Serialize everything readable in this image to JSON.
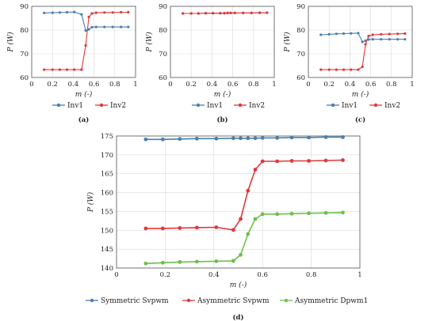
{
  "colors": {
    "blue": "#4a7fb0",
    "red": "#e0383b",
    "green": "#6cc14a",
    "grid": "#d9d9d9",
    "axis": "#555555"
  },
  "chart_data": [
    {
      "type": "line",
      "panel_label": "(a)",
      "xlabel": "m (-)",
      "ylabel": "P (W)",
      "xlim": [
        0,
        1
      ],
      "ylim": [
        60,
        90
      ],
      "xticks": [
        "0",
        "0.2",
        "0.4",
        "0.6",
        "0.8",
        "1"
      ],
      "yticks": [
        "60",
        "70",
        "80",
        "90"
      ],
      "grid": true,
      "legend_position": "bottom",
      "series": [
        {
          "name": "Inv1",
          "color": "blue",
          "x": [
            0.12,
            0.2,
            0.27,
            0.34,
            0.41,
            0.48,
            0.52,
            0.55,
            0.58,
            0.62,
            0.7,
            0.78,
            0.86,
            0.93
          ],
          "y": [
            87.2,
            87.3,
            87.4,
            87.5,
            87.6,
            86.6,
            79.8,
            80.3,
            81.2,
            81.3,
            81.3,
            81.3,
            81.3,
            81.3
          ]
        },
        {
          "name": "Inv2",
          "color": "red",
          "x": [
            0.12,
            0.2,
            0.27,
            0.34,
            0.41,
            0.48,
            0.52,
            0.55,
            0.58,
            0.62,
            0.7,
            0.78,
            0.86,
            0.93
          ],
          "y": [
            63.3,
            63.3,
            63.3,
            63.3,
            63.3,
            63.3,
            73.5,
            85.5,
            87.0,
            87.3,
            87.4,
            87.4,
            87.5,
            87.5
          ]
        }
      ]
    },
    {
      "type": "line",
      "panel_label": "(b)",
      "xlabel": "m (-)",
      "ylabel": "P (W)",
      "xlim": [
        0,
        1
      ],
      "ylim": [
        60,
        90
      ],
      "xticks": [
        "0",
        "0.2",
        "0.4",
        "0.6",
        "0.8",
        "1"
      ],
      "yticks": [
        "60",
        "70",
        "80",
        "90"
      ],
      "grid": true,
      "legend_position": "bottom",
      "series": [
        {
          "name": "Inv1",
          "color": "blue",
          "x": [
            0.12,
            0.2,
            0.27,
            0.34,
            0.41,
            0.48,
            0.52,
            0.55,
            0.58,
            0.62,
            0.7,
            0.78,
            0.86,
            0.93
          ],
          "y": [
            87.0,
            87.0,
            87.0,
            87.1,
            87.1,
            87.1,
            87.1,
            87.2,
            87.2,
            87.2,
            87.2,
            87.2,
            87.3,
            87.3
          ]
        },
        {
          "name": "Inv2",
          "color": "red",
          "x": [
            0.12,
            0.2,
            0.27,
            0.34,
            0.41,
            0.48,
            0.52,
            0.55,
            0.58,
            0.62,
            0.7,
            0.78,
            0.86,
            0.93
          ],
          "y": [
            87.0,
            87.0,
            87.0,
            87.1,
            87.1,
            87.1,
            87.1,
            87.2,
            87.2,
            87.2,
            87.2,
            87.2,
            87.3,
            87.3
          ]
        }
      ]
    },
    {
      "type": "line",
      "panel_label": "(c)",
      "xlabel": "m (-)",
      "ylabel": "P (W)",
      "xlim": [
        0,
        1
      ],
      "ylim": [
        60,
        90
      ],
      "xticks": [
        "0",
        "0.2",
        "0.4",
        "0.6",
        "0.8",
        "1"
      ],
      "yticks": [
        "60",
        "70",
        "80",
        "90"
      ],
      "grid": true,
      "legend_position": "bottom",
      "series": [
        {
          "name": "Inv1",
          "color": "blue",
          "x": [
            0.12,
            0.2,
            0.27,
            0.34,
            0.41,
            0.48,
            0.52,
            0.55,
            0.58,
            0.62,
            0.7,
            0.78,
            0.86,
            0.93
          ],
          "y": [
            78.0,
            78.2,
            78.4,
            78.5,
            78.6,
            78.7,
            75.0,
            75.5,
            76.0,
            76.1,
            76.1,
            76.1,
            76.1,
            76.1
          ]
        },
        {
          "name": "Inv2",
          "color": "red",
          "x": [
            0.12,
            0.2,
            0.27,
            0.34,
            0.41,
            0.48,
            0.52,
            0.55,
            0.58,
            0.62,
            0.7,
            0.78,
            0.86,
            0.93
          ],
          "y": [
            63.3,
            63.3,
            63.3,
            63.3,
            63.3,
            63.3,
            64.5,
            74.0,
            77.5,
            78.0,
            78.2,
            78.3,
            78.4,
            78.5
          ]
        }
      ]
    },
    {
      "type": "line",
      "panel_label": "(d)",
      "xlabel": "m (-)",
      "ylabel": "P (W)",
      "xlim": [
        0,
        1
      ],
      "ylim": [
        140,
        175
      ],
      "xticks": [
        "0",
        "0.2",
        "0.4",
        "0.6",
        "0.8",
        "1"
      ],
      "yticks": [
        "140",
        "145",
        "150",
        "155",
        "160",
        "165",
        "170",
        "175"
      ],
      "grid": true,
      "legend_position": "bottom",
      "series": [
        {
          "name": "Symmetric Svpwm",
          "color": "blue",
          "x": [
            0.12,
            0.19,
            0.26,
            0.33,
            0.41,
            0.48,
            0.51,
            0.54,
            0.57,
            0.6,
            0.66,
            0.72,
            0.79,
            0.86,
            0.93
          ],
          "y": [
            174.1,
            174.1,
            174.2,
            174.3,
            174.3,
            174.4,
            174.4,
            174.4,
            174.4,
            174.5,
            174.5,
            174.6,
            174.6,
            174.7,
            174.7
          ]
        },
        {
          "name": "Asymmetric Svpwm",
          "color": "red",
          "x": [
            0.12,
            0.19,
            0.26,
            0.33,
            0.41,
            0.48,
            0.51,
            0.54,
            0.57,
            0.6,
            0.66,
            0.72,
            0.79,
            0.86,
            0.93
          ],
          "y": [
            150.5,
            150.5,
            150.6,
            150.7,
            150.8,
            150.1,
            153.0,
            160.5,
            166.1,
            168.3,
            168.3,
            168.4,
            168.4,
            168.5,
            168.6
          ]
        },
        {
          "name": "Asymmetric Dpwm1",
          "color": "green",
          "x": [
            0.12,
            0.19,
            0.26,
            0.33,
            0.41,
            0.48,
            0.51,
            0.54,
            0.57,
            0.6,
            0.66,
            0.72,
            0.79,
            0.86,
            0.93
          ],
          "y": [
            141.2,
            141.4,
            141.6,
            141.7,
            141.8,
            141.9,
            143.5,
            149.0,
            153.0,
            154.3,
            154.3,
            154.4,
            154.5,
            154.6,
            154.7
          ]
        }
      ]
    }
  ]
}
